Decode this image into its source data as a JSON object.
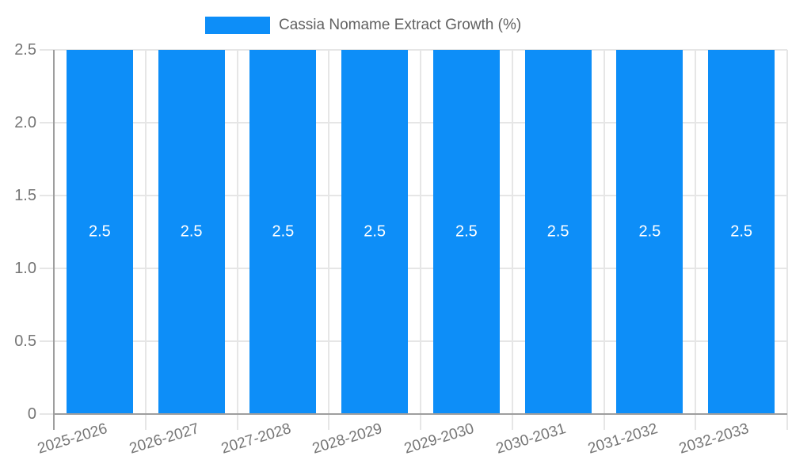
{
  "chart_data": {
    "type": "bar",
    "legend": {
      "label": "Cassia Nomame Extract Growth (%)",
      "position": "top"
    },
    "categories": [
      "2025-2026",
      "2026-2027",
      "2027-2028",
      "2028-2029",
      "2029-2030",
      "2030-2031",
      "2031-2032",
      "2032-2033"
    ],
    "values": [
      2.5,
      2.5,
      2.5,
      2.5,
      2.5,
      2.5,
      2.5,
      2.5
    ],
    "bar_labels": [
      "2.5",
      "2.5",
      "2.5",
      "2.5",
      "2.5",
      "2.5",
      "2.5",
      "2.5"
    ],
    "title": "",
    "xlabel": "",
    "ylabel": "",
    "ylim": [
      0,
      2.5
    ],
    "yticks": [
      {
        "value": 0,
        "label": "0"
      },
      {
        "value": 0.5,
        "label": "0.5"
      },
      {
        "value": 1.0,
        "label": "1.0"
      },
      {
        "value": 1.5,
        "label": "1.5"
      },
      {
        "value": 2.0,
        "label": "2.0"
      },
      {
        "value": 2.5,
        "label": "2.5"
      }
    ],
    "grid": "horizontal and vertical",
    "colors": {
      "bar": "#0d8ef8",
      "grid": "#e6e6e6",
      "axis": "#9e9e9e",
      "tick_label": "#757575",
      "legend_text": "#616161",
      "bar_label": "#ffffff",
      "background": "#ffffff"
    }
  }
}
